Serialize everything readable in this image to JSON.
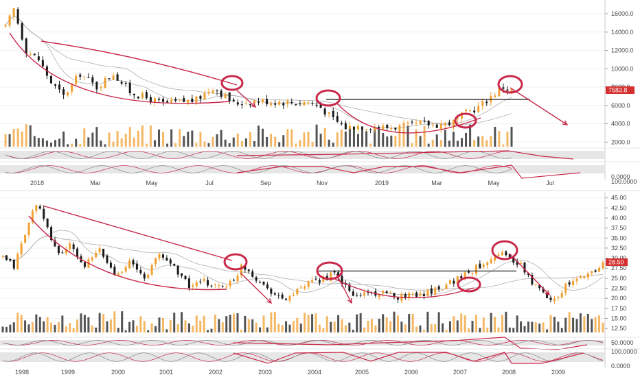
{
  "colors": {
    "bull": "#f0a030",
    "bear": "#1a1a1a",
    "annotation": "#c8284a",
    "level": "#222222",
    "price_badge": "#d32f2f",
    "ma": "#9a9a9a",
    "osc_band": "#d6d6d6"
  },
  "chart_data": [
    {
      "type": "candlestick",
      "panel": "top",
      "y_ticks": [
        "16000.0",
        "14000.0",
        "12000.0",
        "10000.0",
        "8000.0",
        "6000.0",
        "4000.0",
        "2000.0"
      ],
      "y_tick_values": [
        16000,
        14000,
        12000,
        10000,
        8000,
        6000,
        4000,
        2000
      ],
      "ylim": [
        1500,
        17200
      ],
      "x_ticks": [
        "2018",
        "Mar",
        "May",
        "Jul",
        "Sep",
        "Nov",
        "2019",
        "Mar",
        "May",
        "Jul"
      ],
      "last_price": "7583.8",
      "oscillator_ticks": [
        "100.0000",
        "0.0000"
      ],
      "anchors": [
        [
          0,
          14500
        ],
        [
          2,
          16500
        ],
        [
          5,
          12000
        ],
        [
          8,
          11000
        ],
        [
          11,
          8500
        ],
        [
          14,
          7000
        ],
        [
          18,
          9500
        ],
        [
          22,
          8000
        ],
        [
          26,
          9500
        ],
        [
          30,
          7500
        ],
        [
          34,
          6800
        ],
        [
          38,
          6200
        ],
        [
          42,
          6400
        ],
        [
          46,
          6600
        ],
        [
          50,
          8000
        ],
        [
          53,
          7000
        ],
        [
          55,
          6200
        ],
        [
          60,
          6500
        ],
        [
          66,
          6400
        ],
        [
          70,
          6300
        ],
        [
          73,
          6400
        ],
        [
          76,
          5800
        ],
        [
          79,
          4500
        ],
        [
          82,
          3600
        ],
        [
          85,
          3800
        ],
        [
          88,
          3700
        ],
        [
          92,
          3600
        ],
        [
          96,
          3700
        ],
        [
          100,
          4000
        ],
        [
          104,
          3900
        ],
        [
          108,
          4200
        ],
        [
          111,
          5200
        ],
        [
          114,
          5800
        ],
        [
          117,
          7000
        ],
        [
          120,
          8000
        ],
        [
          122,
          7600
        ]
      ],
      "level_value": 6650
    },
    {
      "type": "candlestick",
      "panel": "bottom",
      "y_ticks": [
        "45.00",
        "42.50",
        "40.00",
        "37.50",
        "35.00",
        "32.50",
        "30.00",
        "27.50",
        "25.00",
        "22.50",
        "20.00",
        "17.50",
        "15.00",
        "12.50"
      ],
      "y_tick_values": [
        45,
        42.5,
        40,
        37.5,
        35,
        32.5,
        30,
        27.5,
        25,
        22.5,
        20,
        17.5,
        15,
        12.5
      ],
      "ylim": [
        11.5,
        45.8
      ],
      "x_ticks": [
        "1998",
        "1999",
        "2000",
        "2001",
        "2002",
        "2003",
        "2004",
        "2005",
        "2006",
        "2007",
        "2008",
        "2009"
      ],
      "last_price": "28.50",
      "oscillator_ticks": [
        "50.0000",
        "100.0000",
        "0.0000"
      ],
      "anchors": [
        [
          0,
          30
        ],
        [
          3,
          28
        ],
        [
          6,
          36
        ],
        [
          9,
          44
        ],
        [
          12,
          37
        ],
        [
          15,
          31
        ],
        [
          18,
          33
        ],
        [
          22,
          28
        ],
        [
          26,
          32
        ],
        [
          30,
          26
        ],
        [
          34,
          29
        ],
        [
          38,
          25
        ],
        [
          42,
          31
        ],
        [
          46,
          28
        ],
        [
          50,
          23
        ],
        [
          54,
          24
        ],
        [
          58,
          23
        ],
        [
          62,
          24
        ],
        [
          64,
          28.5
        ],
        [
          66,
          27
        ],
        [
          69,
          24
        ],
        [
          72,
          22
        ],
        [
          75,
          19.5
        ],
        [
          78,
          21
        ],
        [
          82,
          23.5
        ],
        [
          86,
          25
        ],
        [
          89,
          26
        ],
        [
          91,
          24
        ],
        [
          94,
          20.5
        ],
        [
          98,
          21.5
        ],
        [
          102,
          21
        ],
        [
          106,
          20.5
        ],
        [
          110,
          21
        ],
        [
          114,
          21.5
        ],
        [
          118,
          23
        ],
        [
          122,
          25
        ],
        [
          126,
          27
        ],
        [
          130,
          29.5
        ],
        [
          133,
          31.5
        ],
        [
          136,
          30
        ],
        [
          139,
          28
        ],
        [
          142,
          24
        ],
        [
          145,
          21
        ],
        [
          148,
          20
        ],
        [
          151,
          23
        ],
        [
          154,
          24.5
        ],
        [
          157,
          26
        ],
        [
          160,
          28
        ],
        [
          161,
          28.5
        ]
      ],
      "level_value": 26.8
    }
  ]
}
